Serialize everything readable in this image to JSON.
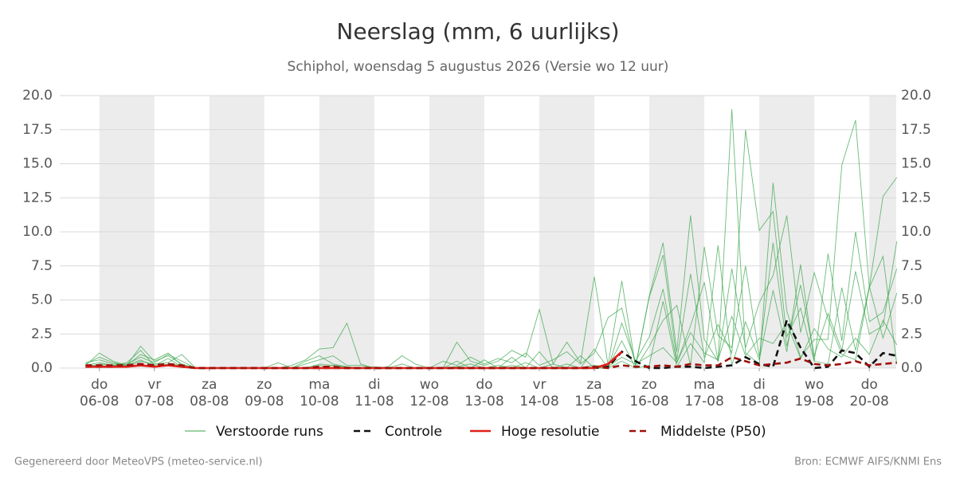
{
  "chart_data": {
    "type": "line",
    "title": "Neerslag (mm, 6 uurlijks)",
    "subtitle": "Schiphol, woensdag  5 augustus 2026 (Versie wo 12 uur)",
    "footer_left": "Gegenereerd door MeteoVPS (meteo-service.nl)",
    "footer_right": "Bron: ECMWF AIFS/KNMI Ens",
    "x": [
      -0.25,
      0,
      0.25,
      0.5,
      0.75,
      1,
      1.25,
      1.5,
      1.75,
      2,
      2.25,
      2.5,
      2.75,
      3,
      3.25,
      3.5,
      3.75,
      4,
      4.25,
      4.5,
      4.75,
      5,
      5.25,
      5.5,
      5.75,
      6,
      6.25,
      6.5,
      6.75,
      7,
      7.25,
      7.5,
      7.75,
      8,
      8.25,
      8.5,
      8.75,
      9,
      9.25,
      9.5,
      9.75,
      10,
      10.25,
      10.5,
      10.75,
      11,
      11.25,
      11.5,
      11.75,
      12,
      12.25,
      12.5,
      12.75,
      13,
      13.25,
      13.5,
      13.75,
      14,
      14.25,
      14.5
    ],
    "xlim": [
      -0.72,
      14.49
    ],
    "xticks": [
      {
        "value": 0,
        "label": "do 06-08"
      },
      {
        "value": 1,
        "label": "vr 07-08"
      },
      {
        "value": 2,
        "label": "za 08-08"
      },
      {
        "value": 3,
        "label": "zo 09-08"
      },
      {
        "value": 4,
        "label": "ma 10-08"
      },
      {
        "value": 5,
        "label": "di 11-08"
      },
      {
        "value": 6,
        "label": "wo 12-08"
      },
      {
        "value": 7,
        "label": "do 13-08"
      },
      {
        "value": 8,
        "label": "vr 14-08"
      },
      {
        "value": 9,
        "label": "za 15-08"
      },
      {
        "value": 10,
        "label": "zo 16-08"
      },
      {
        "value": 11,
        "label": "ma 17-08"
      },
      {
        "value": 12,
        "label": "di 18-08"
      },
      {
        "value": 13,
        "label": "wo 19-08"
      },
      {
        "value": 14,
        "label": "do 20-08"
      }
    ],
    "ylim": [
      0,
      20
    ],
    "yticks": [
      {
        "value": 0,
        "label": "0.0"
      },
      {
        "value": 2.5,
        "label": "2.5"
      },
      {
        "value": 5,
        "label": "5.0"
      },
      {
        "value": 7.5,
        "label": "7.5"
      },
      {
        "value": 10,
        "label": "10.0"
      },
      {
        "value": 12.5,
        "label": "12.5"
      },
      {
        "value": 15,
        "label": "15.0"
      },
      {
        "value": 17.5,
        "label": "17.5"
      },
      {
        "value": 20,
        "label": "20.0"
      }
    ],
    "grid": true,
    "series": [
      {
        "name": "Verstoorde runs",
        "color": "#3aa64a",
        "dash": false,
        "runs": [
          [
            0.3,
            0.8,
            0.4,
            0.2,
            1.6,
            0.5,
            0.9,
            0.3,
            0,
            0,
            0,
            0,
            0,
            0,
            0,
            0.2,
            0.6,
            1.4,
            1.5,
            3.3,
            0.3,
            0,
            0.1,
            0.9,
            0.3,
            0,
            0,
            1.9,
            0.5,
            0.2,
            0.5,
            1.3,
            0.8,
            4.3,
            0.3,
            1.9,
            0.4,
            6.7,
            0.2,
            6.4,
            0.1,
            5.3,
            9.2,
            1.2,
            11.2,
            2.1,
            0.5,
            19.0,
            1.1,
            0.3,
            13.6,
            4.2,
            0.8,
            2.1,
            2.1,
            14.9,
            18.2,
            5.9,
            12.6,
            14.0
          ],
          [
            0.2,
            1.1,
            0.5,
            0.2,
            1.0,
            0.6,
            1.1,
            0.2,
            0,
            0,
            0,
            0,
            0,
            0,
            0.4,
            0,
            0.5,
            0.9,
            0.3,
            0.1,
            0,
            0.1,
            0,
            0.3,
            0,
            0,
            0.5,
            0.2,
            0.8,
            0.3,
            0.7,
            0.4,
            1.1,
            0.2,
            0.6,
            1.2,
            0.3,
            1.1,
            3.7,
            4.4,
            0.2,
            5.2,
            8.3,
            0.6,
            6.9,
            0.8,
            3.2,
            1.1,
            17.5,
            10.1,
            11.5,
            2.3,
            4.4,
            0.5,
            8.4,
            2.0,
            10.0,
            3.4,
            4.1,
            7.3
          ],
          [
            0.1,
            0.3,
            0.2,
            0.4,
            1.3,
            0.2,
            0.7,
            0.1,
            0,
            0,
            0,
            0,
            0,
            0,
            0,
            0,
            0.3,
            0.6,
            0.9,
            0.2,
            0.2,
            0,
            0,
            0,
            0,
            0,
            0,
            0.5,
            0,
            0.6,
            0,
            0.8,
            0,
            1.2,
            0,
            0.3,
            0,
            1.4,
            0,
            3.3,
            0.5,
            2.3,
            5.8,
            0.4,
            3.1,
            6.3,
            0.5,
            7.3,
            1.5,
            4.8,
            6.8,
            11.2,
            2.6,
            7.0,
            3.6,
            1.0,
            0.6,
            5.9,
            8.2,
            0.3
          ],
          [
            0.4,
            0.6,
            0.3,
            0.3,
            0.8,
            0.4,
            1.0,
            0.5,
            0,
            0,
            0,
            0,
            0,
            0,
            0,
            0,
            0,
            0.3,
            0.2,
            0.1,
            0,
            0,
            0,
            0,
            0,
            0,
            0,
            0.1,
            0.3,
            0,
            0.2,
            0,
            0.4,
            0,
            0.3,
            0,
            0.9,
            0,
            0.1,
            2.0,
            0,
            1.6,
            3.5,
            4.6,
            0.2,
            8.9,
            2.4,
            1.5,
            7.5,
            0.8,
            9.2,
            1.6,
            6.1,
            0.9,
            4.0,
            1.3,
            7.1,
            2.5,
            3.1,
            9.3
          ],
          [
            0.2,
            0.4,
            0.2,
            0.1,
            0.5,
            0.3,
            0.4,
            1.0,
            0,
            0,
            0,
            0,
            0,
            0,
            0,
            0,
            0,
            0.2,
            0,
            0,
            0,
            0,
            0,
            0,
            0,
            0,
            0,
            0,
            0,
            0,
            0,
            0,
            0,
            0,
            0,
            0,
            0,
            0.2,
            0.1,
            0.8,
            0.3,
            0.9,
            1.5,
            0.4,
            2.6,
            1.1,
            0.6,
            3.8,
            0.9,
            2.2,
            1.8,
            3.3,
            0.7,
            2.9,
            1.4,
            0.8,
            2.2,
            1.0,
            3.5,
            1.7
          ],
          [
            0.1,
            0.2,
            0.1,
            0.2,
            0.6,
            0.1,
            0.3,
            0.2,
            0,
            0,
            0,
            0,
            0,
            0,
            0,
            0,
            0,
            0,
            0.2,
            0,
            0,
            0,
            0,
            0,
            0,
            0,
            0,
            0.1,
            0,
            0,
            0,
            0.2,
            0,
            0,
            0,
            0,
            0,
            0,
            0,
            0.5,
            0,
            0.2,
            4.9,
            0.1,
            1.8,
            0.4,
            9.0,
            0.2,
            3.4,
            0.6,
            5.7,
            1.2,
            7.6,
            0.5,
            0.3,
            5.9,
            1.3,
            6.0,
            2.2,
            5.5
          ]
        ]
      },
      {
        "name": "Controle",
        "color": "#111111",
        "dash": true,
        "values": [
          0.1,
          0.1,
          0.1,
          0.2,
          0.3,
          0.2,
          0.3,
          0.1,
          0,
          0,
          0,
          0,
          0,
          0,
          0,
          0,
          0,
          0,
          0,
          0,
          0,
          0,
          0,
          0,
          0,
          0,
          0,
          0,
          0,
          0,
          0,
          0,
          0,
          0,
          0,
          0,
          0,
          0,
          0.1,
          1.2,
          0.5,
          0,
          0,
          0.1,
          0.1,
          0,
          0.1,
          0.2,
          0.8,
          0.3,
          0.1,
          3.5,
          1.5,
          0,
          0.1,
          1.3,
          1.1,
          0.1,
          1.1,
          0.9
        ]
      },
      {
        "name": "Hoge resolutie",
        "color": "#e0201a",
        "dash": false,
        "values": [
          0.1,
          0.1,
          0.1,
          0.1,
          0.2,
          0.1,
          0.2,
          0.1,
          0,
          0,
          0,
          0,
          0,
          0,
          0,
          0,
          0,
          0,
          0,
          0,
          0,
          0,
          0,
          0,
          0,
          0,
          0,
          0,
          0,
          0,
          0,
          0,
          0,
          0,
          0,
          0,
          0,
          0,
          0.3,
          1.2,
          null,
          null,
          null,
          null,
          null,
          null,
          null,
          null,
          null,
          null,
          null,
          null,
          null,
          null,
          null,
          null,
          null,
          null,
          null,
          null
        ]
      },
      {
        "name": "Middelste (P50)",
        "color": "#a0100c",
        "dash": true,
        "values": [
          0.2,
          0.2,
          0.2,
          0.2,
          0.3,
          0.2,
          0.3,
          0.2,
          0,
          0,
          0,
          0,
          0,
          0,
          0,
          0,
          0,
          0.1,
          0.1,
          0,
          0,
          0,
          0,
          0,
          0,
          0,
          0,
          0,
          0,
          0,
          0,
          0,
          0,
          0,
          0,
          0,
          0,
          0.1,
          0,
          0.2,
          0.1,
          0.1,
          0.2,
          0.1,
          0.3,
          0.2,
          0.2,
          0.8,
          0.5,
          0.2,
          0.3,
          0.4,
          0.7,
          0.3,
          0.2,
          0.3,
          0.5,
          0.2,
          0.3,
          0.4
        ]
      }
    ]
  }
}
